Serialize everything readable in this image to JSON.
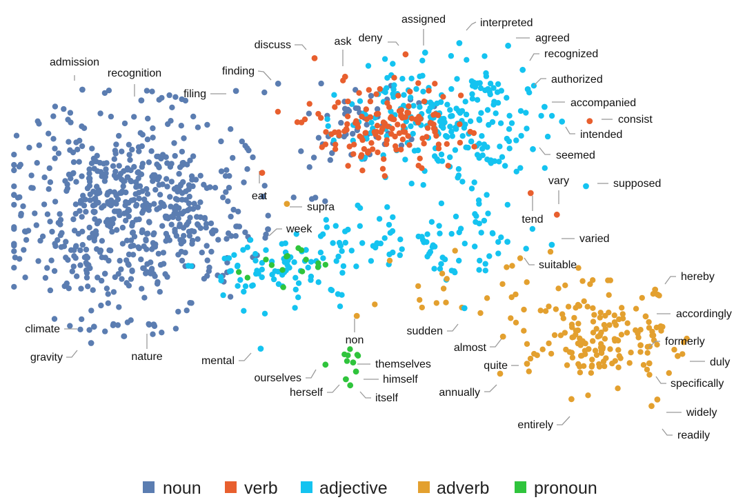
{
  "chart_data": {
    "type": "scatter",
    "title": "",
    "xlabel": "",
    "ylabel": "",
    "grid": false,
    "axes_visible": false,
    "legend_position": "bottom-center",
    "xlim": [
      0,
      100
    ],
    "ylim": [
      0,
      100
    ],
    "series": [
      {
        "name": "noun",
        "color": "#5b7db1",
        "clusters": [
          {
            "center": [
              16,
              53
            ],
            "spread": [
              7.8,
              11.5
            ],
            "count": 640
          },
          {
            "center": [
              49,
              74
            ],
            "spread": [
              5.0,
              4.2
            ],
            "count": 45
          },
          {
            "center": [
              38,
              64
            ],
            "spread": [
              6.0,
              9.0
            ],
            "count": 14
          }
        ]
      },
      {
        "name": "verb",
        "color": "#e85f2e",
        "clusters": [
          {
            "center": [
              51,
              73
            ],
            "spread": [
              6.0,
              4.6
            ],
            "count": 145
          }
        ]
      },
      {
        "name": "adjective",
        "color": "#14c3f0",
        "clusters": [
          {
            "center": [
              59,
              75
            ],
            "spread": [
              6.2,
              6.3
            ],
            "count": 210
          },
          {
            "center": [
              55,
              45
            ],
            "spread": [
              8.0,
              4.2
            ],
            "count": 95
          },
          {
            "center": [
              37,
              40
            ],
            "spread": [
              6.0,
              4.2
            ],
            "count": 75
          },
          {
            "center": [
              66,
              62
            ],
            "spread": [
              3.0,
              6.0
            ],
            "count": 20
          }
        ]
      },
      {
        "name": "adverb",
        "color": "#e3a02f",
        "clusters": [
          {
            "center": [
              81,
              24
            ],
            "spread": [
              4.8,
              5.4
            ],
            "count": 155
          },
          {
            "center": [
              64,
              36
            ],
            "spread": [
              6.0,
              5.0
            ],
            "count": 25
          }
        ]
      },
      {
        "name": "pronoun",
        "color": "#2fc43c",
        "clusters": [
          {
            "center": [
              39,
              41.5
            ],
            "spread": [
              3.2,
              3.0
            ],
            "count": 15
          },
          {
            "center": [
              47,
              21
            ],
            "spread": [
              0.8,
              1.2
            ],
            "count": 6
          }
        ]
      }
    ],
    "annotations": [
      {
        "text": "admission",
        "category": "noun",
        "x": 9.9,
        "y": 81.6
      },
      {
        "text": "recognition",
        "category": "noun",
        "x": 18.0,
        "y": 79.1
      },
      {
        "text": "filing",
        "category": "noun",
        "x": 31.0,
        "y": 81.3
      },
      {
        "text": "finding",
        "category": "noun",
        "x": 36.8,
        "y": 83.0
      },
      {
        "text": "discuss",
        "category": "verb",
        "x": 41.8,
        "y": 88.9
      },
      {
        "text": "ask",
        "category": "verb",
        "x": 46.0,
        "y": 84.6
      },
      {
        "text": "deny",
        "category": "verb",
        "x": 54.3,
        "y": 89.8
      },
      {
        "text": "assigned",
        "category": "adjective",
        "x": 57.0,
        "y": 90.2
      },
      {
        "text": "interpreted",
        "category": "adjective",
        "x": 61.7,
        "y": 92.4
      },
      {
        "text": "agreed",
        "category": "adjective",
        "x": 68.4,
        "y": 91.8
      },
      {
        "text": "recognized",
        "category": "adjective",
        "x": 70.4,
        "y": 86.2
      },
      {
        "text": "authorized",
        "category": "adjective",
        "x": 71.1,
        "y": 81.7
      },
      {
        "text": "accompanied",
        "category": "adjective",
        "x": 73.4,
        "y": 77.6
      },
      {
        "text": "consist",
        "category": "verb",
        "x": 79.6,
        "y": 74.3
      },
      {
        "text": "intended",
        "category": "adjective",
        "x": 75.8,
        "y": 74.2
      },
      {
        "text": "seemed",
        "category": "adjective",
        "x": 71.8,
        "y": 67.8
      },
      {
        "text": "vary",
        "category": "verb",
        "x": 75.1,
        "y": 52.6
      },
      {
        "text": "supposed",
        "category": "adjective",
        "x": 79.1,
        "y": 59.2
      },
      {
        "text": "tend",
        "category": "verb",
        "x": 71.5,
        "y": 57.6
      },
      {
        "text": "varied",
        "category": "adjective",
        "x": 74.4,
        "y": 45.6
      },
      {
        "text": "eat",
        "category": "verb",
        "x": 34.6,
        "y": 62.3
      },
      {
        "text": "supra",
        "category": "adverb",
        "x": 38.0,
        "y": 55.1
      },
      {
        "text": "week",
        "category": "noun",
        "x": 35.4,
        "y": 49.2
      },
      {
        "text": "suitable",
        "category": "adjective",
        "x": 68.3,
        "y": 46.3
      },
      {
        "text": "hereby",
        "category": "adverb",
        "x": 88.6,
        "y": 35.2
      },
      {
        "text": "accordingly",
        "category": "adverb",
        "x": 87.3,
        "y": 29.0
      },
      {
        "text": "formerly",
        "category": "adverb",
        "x": 86.6,
        "y": 22.3
      },
      {
        "text": "duly",
        "category": "adverb",
        "x": 91.7,
        "y": 19.8
      },
      {
        "text": "specifically",
        "category": "adverb",
        "x": 87.8,
        "y": 18.1
      },
      {
        "text": "widely",
        "category": "adverb",
        "x": 88.9,
        "y": 9.7
      },
      {
        "text": "readily",
        "category": "adverb",
        "x": 88.1,
        "y": 8.2
      },
      {
        "text": "entirely",
        "category": "adverb",
        "x": 77.1,
        "y": 9.8
      },
      {
        "text": "climate",
        "category": "noun",
        "x": 11.5,
        "y": 26.6
      },
      {
        "text": "gravity",
        "category": "noun",
        "x": 11.1,
        "y": 22.8
      },
      {
        "text": "nature",
        "category": "noun",
        "x": 19.7,
        "y": 27.1
      },
      {
        "text": "mental",
        "category": "adjective",
        "x": 34.4,
        "y": 21.5
      },
      {
        "text": "non",
        "category": "adverb",
        "x": 47.6,
        "y": 29.1
      },
      {
        "text": "sudden",
        "category": "adjective",
        "x": 62.4,
        "y": 30.9
      },
      {
        "text": "almost",
        "category": "adverb",
        "x": 67.7,
        "y": 24.3
      },
      {
        "text": "quite",
        "category": "adverb",
        "x": 71.0,
        "y": 18.0
      },
      {
        "text": "annually",
        "category": "adverb",
        "x": 67.3,
        "y": 15.7
      },
      {
        "text": "ourselves",
        "category": "pronoun",
        "x": 43.3,
        "y": 17.8
      },
      {
        "text": "themselves",
        "category": "pronoun",
        "x": 47.1,
        "y": 18.3
      },
      {
        "text": "himself",
        "category": "pronoun",
        "x": 47.5,
        "y": 16.2
      },
      {
        "text": "herself",
        "category": "pronoun",
        "x": 46.1,
        "y": 14.4
      },
      {
        "text": "itself",
        "category": "pronoun",
        "x": 46.7,
        "y": 13.0
      }
    ]
  }
}
